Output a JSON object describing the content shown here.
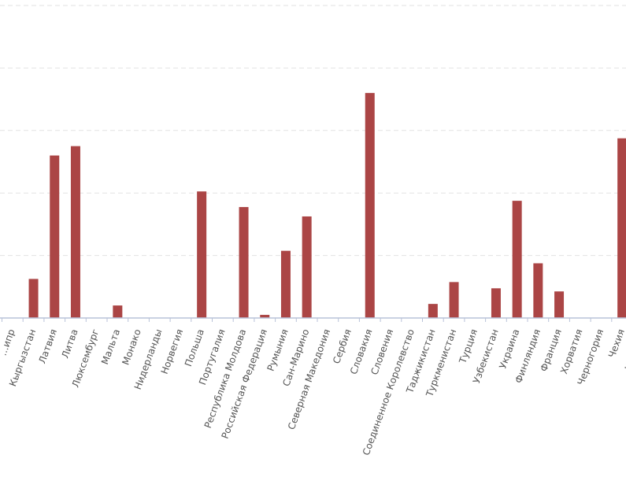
{
  "chart_data": {
    "type": "bar",
    "categories": [
      "...ипр",
      "Кыргызстан",
      "Латвия",
      "Литва",
      "Люксембург",
      "Мальта",
      "Монако",
      "Нидерланды",
      "Норвегия",
      "Польша",
      "Португалия",
      "Республика Молдова",
      "Российская Федерация",
      "Румыния",
      "Сан-Марино",
      "Северная Македония",
      "Сербия",
      "Словакия",
      "Словения",
      "Соединенное Королевство",
      "Таджикистан",
      "Туркменистан",
      "Турция",
      "Узбекистан",
      "Украина",
      "Финляндия",
      "Франция",
      "Хорватия",
      "Черногория",
      "Чехия",
      "Швейц..."
    ],
    "values": [
      0,
      12.5,
      52,
      55,
      0,
      4,
      0,
      0,
      0,
      40.5,
      0,
      35.5,
      1,
      21.5,
      32.5,
      0,
      0,
      72,
      0,
      0,
      4.5,
      11.5,
      0,
      9.5,
      37.5,
      17.5,
      8.5,
      0,
      0,
      57.5,
      0
    ],
    "ylim": [
      0,
      100
    ],
    "grid": true,
    "colors": {
      "bar": "#ab4545",
      "axis": "#b8c2d8",
      "grid": "#e2e2e2",
      "label": "#555555"
    }
  }
}
